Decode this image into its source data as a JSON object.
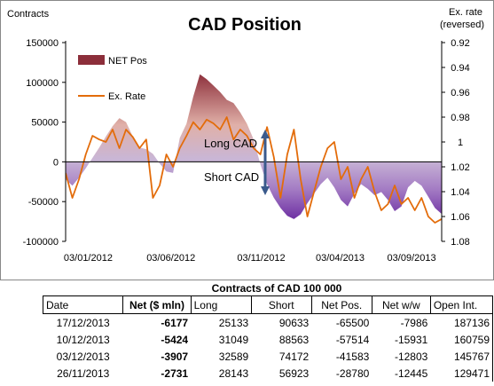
{
  "chart_data": {
    "type": "area",
    "title": "CAD Position",
    "y_left_label": "Contracts",
    "y_right_label": [
      "Ex. rate",
      "(reversed)"
    ],
    "y_left_ticks": [
      150000,
      100000,
      50000,
      0,
      -50000,
      -100000
    ],
    "y_left_tick_labels": [
      "150000",
      "100000",
      "50000",
      "0",
      "-50000",
      "-100000"
    ],
    "y_left_range": [
      -100000,
      150000
    ],
    "y_right_ticks": [
      "0.92",
      "0.94",
      "0.96",
      "0.98",
      "1",
      "1.02",
      "1.04",
      "1.06",
      "1.08"
    ],
    "y_right_range": [
      1.08,
      0.92
    ],
    "y_right_reversed": true,
    "x_tick_labels": [
      "03/01/2012",
      "03/06/2012",
      "03/11/2012",
      "03/04/2013",
      "03/09/2013"
    ],
    "legend": {
      "placement": "upper-left",
      "entries": [
        "NET Pos",
        "Ex. Rate"
      ]
    },
    "annotations": [
      "Long CAD",
      "Short CAD"
    ],
    "colors": {
      "net_pos_top": "#8c2e3a",
      "net_pos_mid": "#d8a8a0",
      "net_pos_zero": "#c8b8d4",
      "net_pos_bottom": "#6a2aa0",
      "ex_rate": "#e36c0a",
      "arrow": "#3a5a8c"
    },
    "series": [
      {
        "name": "NET Pos",
        "type": "area",
        "axis": "left",
        "values": [
          -22000,
          -30000,
          -20000,
          -8000,
          5000,
          18000,
          32000,
          45000,
          55000,
          50000,
          32000,
          18000,
          16000,
          10000,
          -2000,
          -12000,
          -14000,
          30000,
          48000,
          82000,
          110000,
          104000,
          96000,
          88000,
          78000,
          74000,
          62000,
          48000,
          28000,
          -3000,
          -28000,
          -45000,
          -58000,
          -68000,
          -72000,
          -66000,
          -52000,
          -40000,
          -28000,
          -20000,
          -32000,
          -48000,
          -56000,
          -40000,
          -28000,
          -34000,
          -42000,
          -38000,
          -48000,
          -62000,
          -56000,
          -32000,
          -24000,
          -30000,
          -44000,
          -58000,
          -65500
        ]
      },
      {
        "name": "Ex. Rate",
        "type": "line",
        "axis": "right",
        "values": [
          1.025,
          1.045,
          1.03,
          1.01,
          0.995,
          0.998,
          1.0,
          0.99,
          1.005,
          0.99,
          0.996,
          1.005,
          0.998,
          1.045,
          1.035,
          1.01,
          1.02,
          1.005,
          0.995,
          0.984,
          0.99,
          0.982,
          0.985,
          0.99,
          0.98,
          0.998,
          0.99,
          0.995,
          1.005,
          1.01,
          0.988,
          1.012,
          1.045,
          1.01,
          0.99,
          1.03,
          1.06,
          1.04,
          1.02,
          1.005,
          1.0,
          1.03,
          1.02,
          1.045,
          1.03,
          1.02,
          1.04,
          1.055,
          1.05,
          1.035,
          1.05,
          1.045,
          1.055,
          1.045,
          1.06,
          1.065,
          1.062
        ]
      }
    ]
  },
  "table": {
    "title": "Contracts of CAD 100 000",
    "headers": [
      "Date",
      "Net ($ mln)",
      "Long",
      "Short",
      "Net Pos.",
      "Net w/w",
      "Open Int."
    ],
    "rows": [
      [
        "17/12/2013",
        "-6177",
        "25133",
        "90633",
        "-65500",
        "-7986",
        "187136"
      ],
      [
        "10/12/2013",
        "-5424",
        "31049",
        "88563",
        "-57514",
        "-15931",
        "160759"
      ],
      [
        "03/12/2013",
        "-3907",
        "32589",
        "74172",
        "-41583",
        "-12803",
        "145767"
      ],
      [
        "26/11/2013",
        "-2731",
        "28143",
        "56923",
        "-28780",
        "-12445",
        "129471"
      ]
    ]
  }
}
